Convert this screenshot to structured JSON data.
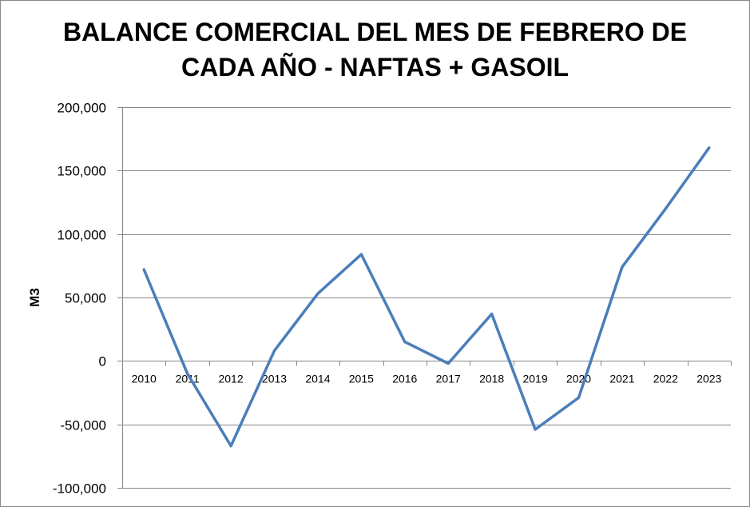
{
  "chart_data": {
    "type": "line",
    "title_line1": "BALANCE COMERCIAL DEL MES DE FEBRERO DE",
    "title_line2": "CADA AÑO - NAFTAS + GASOIL",
    "ylabel": "M3",
    "xlabel": "",
    "ylim": [
      -100000,
      200000
    ],
    "y_ticks": [
      200000,
      150000,
      100000,
      50000,
      0,
      -50000,
      -100000
    ],
    "y_tick_labels": [
      "200,000",
      "150,000",
      "100,000",
      "50,000",
      "0",
      "-50,000",
      "-100,000"
    ],
    "categories": [
      "2010",
      "2011",
      "2012",
      "2013",
      "2014",
      "2015",
      "2016",
      "2017",
      "2018",
      "2019",
      "2020",
      "2021",
      "2022",
      "2023"
    ],
    "series": [
      {
        "values": [
          72000,
          -10000,
          -67000,
          8000,
          53000,
          84000,
          15000,
          -2000,
          37000,
          -54000,
          -29000,
          74000,
          120000,
          168000
        ]
      }
    ],
    "grid": true,
    "legend": "none",
    "colors": {
      "line": "#4a7ebb",
      "grid": "#868686",
      "axis": "#868686"
    }
  }
}
